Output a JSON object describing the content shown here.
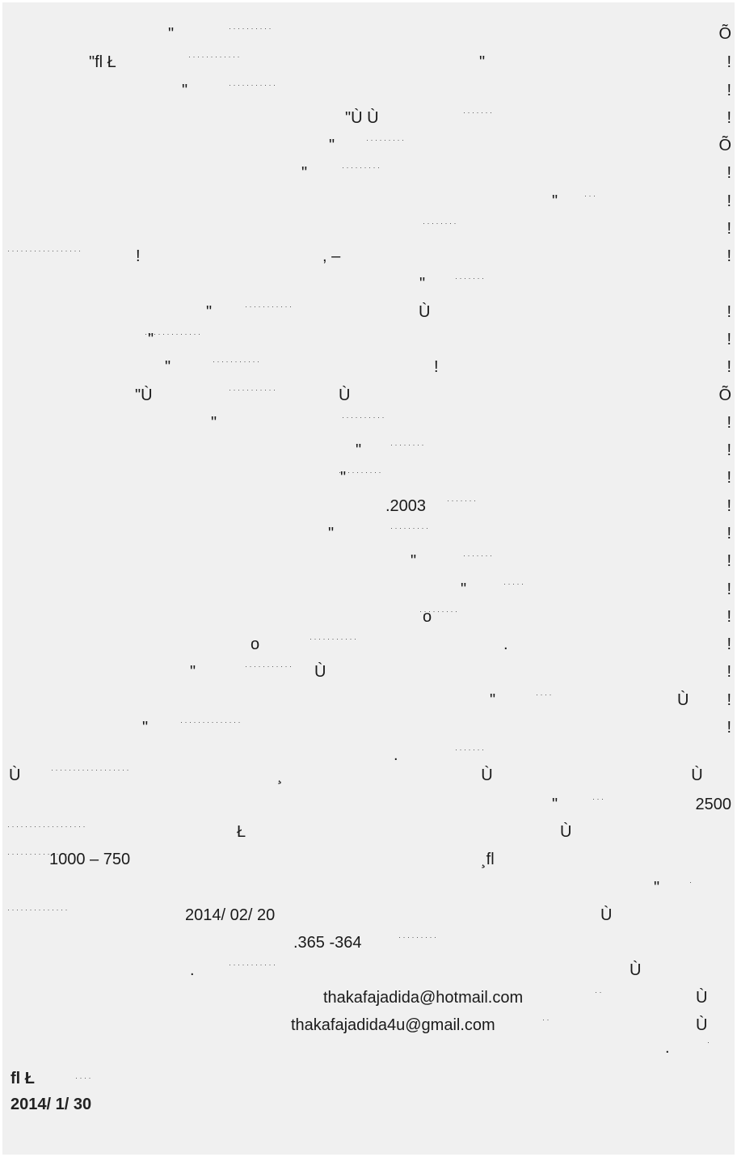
{
  "lines": [
    {
      "lead": "\"",
      "mid": "",
      "end": "Õ"
    },
    {
      "lead": "\"fl Ł",
      "mid": "\"",
      "end": "!"
    },
    {
      "lead": "\"",
      "mid": "",
      "end": "!"
    },
    {
      "lead": "\"Ù   Ù",
      "mid": "",
      "end": "!"
    },
    {
      "lead": "\"",
      "mid": "",
      "end": "Õ"
    },
    {
      "lead": "\"",
      "mid": "",
      "end": "!"
    },
    {
      "lead": "\"",
      "mid": "",
      "end": "!"
    },
    {
      "lead": "",
      "mid": "",
      "end": "!"
    },
    {
      "lead": "!",
      "mid": ",           –",
      "end": "!"
    },
    {
      "lead": "\"",
      "mid": "",
      "end": ""
    },
    {
      "lead": "\"",
      "mid": "Ù",
      "end": "!"
    },
    {
      "lead": "\"",
      "mid": "",
      "end": "!"
    },
    {
      "lead": "\"",
      "mid": "!",
      "end": "!"
    },
    {
      "lead": "\"Ù",
      "mid": "Ù",
      "end": "Õ"
    },
    {
      "lead": "\"",
      "mid": "",
      "end": "!"
    },
    {
      "lead": "\"",
      "mid": "",
      "end": "!"
    },
    {
      "lead": "\"",
      "mid": "",
      "end": "!"
    },
    {
      "lead": ".2003",
      "mid": "",
      "end": "!"
    },
    {
      "lead": "\"",
      "mid": "",
      "end": "!"
    },
    {
      "lead": "\"",
      "mid": "",
      "end": "!"
    },
    {
      "lead": "\"",
      "mid": "",
      "end": "!"
    },
    {
      "lead": "o",
      "mid": "",
      "end": "!"
    },
    {
      "lead": "o",
      "mid": ".",
      "end": "!"
    },
    {
      "lead": "\"",
      "mid": "Ù",
      "end": "!"
    },
    {
      "lead": "\"",
      "mid": "Ù",
      "end": "!"
    },
    {
      "lead": "\"",
      "mid": "",
      "end": "!"
    },
    {
      "lead": "",
      "mid": ".",
      "end": ""
    },
    {
      "lead": "Ù",
      "mid": "¸   Ù   Ù",
      "end": ""
    },
    {
      "lead": "\"",
      "mid": "",
      "end": "2500"
    },
    {
      "lead": "Ł",
      "mid": "Ù",
      "end": ""
    },
    {
      "lead": "1000 – 750",
      "mid": "¸fl",
      "end": ""
    },
    {
      "lead": "\"",
      "mid": "",
      "end": ""
    },
    {
      "lead": "2014/ 02/ 20",
      "mid": "Ù",
      "end": ""
    },
    {
      "lead": ".365 -364",
      "mid": "",
      "end": ""
    },
    {
      "lead": ".",
      "mid": "Ù",
      "end": ""
    },
    {
      "lead": "thakafajadida@hotmail.com",
      "mid": "Ù",
      "end": ""
    },
    {
      "lead": "thakafajadida4u@gmail.com",
      "mid": "Ù",
      "end": ""
    },
    {
      "lead": ".",
      "mid": "",
      "end": ""
    }
  ],
  "signature": {
    "name": "fl          Ł",
    "date": "2014/ 1/ 30"
  }
}
